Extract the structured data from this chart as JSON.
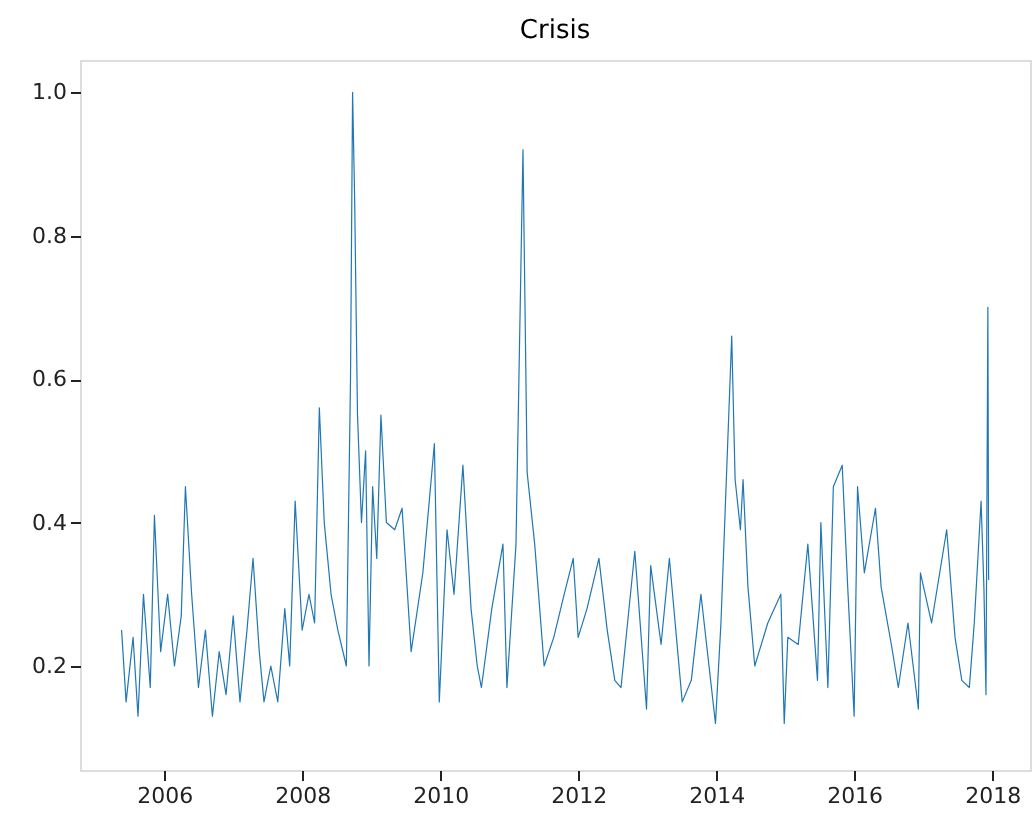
{
  "chart_data": {
    "type": "line",
    "title": "Crisis",
    "x": [
      "2005-05-20",
      "2005-06-13",
      "2005-07-20",
      "2005-08-15",
      "2005-09-13",
      "2005-10-19",
      "2005-11-10",
      "2005-12-13",
      "2006-01-19",
      "2006-02-24",
      "2006-04-01",
      "2006-04-23",
      "2006-05-26",
      "2006-07-01",
      "2006-08-07",
      "2006-09-13",
      "2006-10-19",
      "2006-11-24",
      "2007-01-01",
      "2007-02-06",
      "2007-03-15",
      "2007-04-16",
      "2007-05-19",
      "2007-06-13",
      "2007-07-19",
      "2007-08-25",
      "2007-10-01",
      "2007-10-27",
      "2007-11-25",
      "2008-01-01",
      "2008-02-06",
      "2008-03-07",
      "2008-04-01",
      "2008-04-27",
      "2008-06-02",
      "2008-07-08",
      "2008-08-22",
      "2008-09-13",
      "2008-09-24",
      "2008-10-05",
      "2008-10-20",
      "2008-11-10",
      "2008-12-02",
      "2008-12-20",
      "2009-01-08",
      "2009-01-30",
      "2009-02-21",
      "2009-03-22",
      "2009-05-05",
      "2009-06-13",
      "2009-07-31",
      "2009-10-01",
      "2009-12-01",
      "2009-12-27",
      "2010-02-06",
      "2010-03-15",
      "2010-05-01",
      "2010-06-13",
      "2010-07-16",
      "2010-08-07",
      "2010-10-01",
      "2010-11-29",
      "2010-12-20",
      "2011-02-06",
      "2011-03-15",
      "2011-04-06",
      "2011-05-16",
      "2011-07-05",
      "2011-08-25",
      "2011-10-19",
      "2011-12-06",
      "2012-01-01",
      "2012-02-17",
      "2012-04-20",
      "2012-06-03",
      "2012-07-13",
      "2012-08-15",
      "2012-10-27",
      "2012-12-28",
      "2013-01-19",
      "2013-03-15",
      "2013-04-28",
      "2013-07-05",
      "2013-08-22",
      "2013-10-12",
      "2013-12-28",
      "2014-01-26",
      "2014-03-24",
      "2014-04-11",
      "2014-05-09",
      "2014-05-23",
      "2014-06-18",
      "2014-07-24",
      "2014-10-01",
      "2014-12-09",
      "2014-12-27",
      "2015-01-15",
      "2015-03-11",
      "2015-05-01",
      "2015-06-21",
      "2015-07-09",
      "2015-08-15",
      "2015-09-13",
      "2015-10-30",
      "2015-11-28",
      "2016-01-01",
      "2016-01-19",
      "2016-02-24",
      "2016-04-23",
      "2016-05-23",
      "2016-07-16",
      "2016-08-22",
      "2016-10-12",
      "2016-12-06",
      "2016-12-17",
      "2017-02-14",
      "2017-05-05",
      "2017-06-18",
      "2017-07-24",
      "2017-09-02",
      "2017-09-28",
      "2017-11-03",
      "2017-11-18",
      "2017-11-29",
      "2017-12-09",
      "2017-12-13"
    ],
    "series": [
      {
        "color": "#1f77b4",
        "values": [
          0.25,
          0.15,
          0.24,
          0.13,
          0.3,
          0.17,
          0.41,
          0.22,
          0.3,
          0.2,
          0.27,
          0.45,
          0.3,
          0.17,
          0.25,
          0.13,
          0.22,
          0.16,
          0.27,
          0.15,
          0.25,
          0.35,
          0.22,
          0.15,
          0.2,
          0.15,
          0.28,
          0.2,
          0.43,
          0.25,
          0.3,
          0.26,
          0.56,
          0.4,
          0.3,
          0.25,
          0.2,
          0.6,
          1.0,
          0.85,
          0.55,
          0.4,
          0.5,
          0.2,
          0.45,
          0.35,
          0.55,
          0.4,
          0.39,
          0.42,
          0.22,
          0.33,
          0.51,
          0.15,
          0.39,
          0.3,
          0.48,
          0.28,
          0.2,
          0.17,
          0.28,
          0.37,
          0.17,
          0.37,
          0.92,
          0.47,
          0.37,
          0.2,
          0.24,
          0.3,
          0.35,
          0.24,
          0.28,
          0.35,
          0.25,
          0.18,
          0.17,
          0.36,
          0.14,
          0.34,
          0.23,
          0.35,
          0.15,
          0.18,
          0.3,
          0.12,
          0.26,
          0.66,
          0.46,
          0.39,
          0.46,
          0.31,
          0.2,
          0.26,
          0.3,
          0.12,
          0.24,
          0.23,
          0.37,
          0.18,
          0.4,
          0.17,
          0.45,
          0.48,
          0.31,
          0.13,
          0.45,
          0.33,
          0.42,
          0.31,
          0.23,
          0.17,
          0.26,
          0.14,
          0.33,
          0.26,
          0.39,
          0.24,
          0.18,
          0.17,
          0.26,
          0.43,
          0.31,
          0.16,
          0.7,
          0.32
        ]
      }
    ],
    "xlim": [
      "2004-10-12",
      "2018-07-20"
    ],
    "xticks": [
      "2006",
      "2008",
      "2010",
      "2012",
      "2014",
      "2016",
      "2018"
    ],
    "ylim": [
      0.055,
      1.045
    ],
    "yticks": [
      0.2,
      0.4,
      0.6,
      0.8,
      {
        "value": 1.0,
        "label": "1.0"
      }
    ],
    "grid": false,
    "marker": "none",
    "line_style": "solid"
  }
}
